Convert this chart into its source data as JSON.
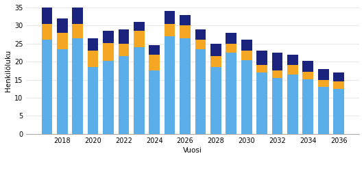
{
  "years": [
    2017,
    2018,
    2019,
    2020,
    2021,
    2022,
    2023,
    2024,
    2025,
    2026,
    2027,
    2028,
    2029,
    2030,
    2031,
    2032,
    2033,
    2034,
    2035,
    2036
  ],
  "vanhuuselakkeet": [
    26.0,
    23.5,
    26.5,
    18.5,
    20.2,
    21.5,
    24.0,
    17.5,
    27.0,
    26.5,
    23.5,
    18.5,
    22.5,
    20.5,
    17.0,
    15.5,
    16.5,
    15.2,
    13.0,
    12.5
  ],
  "tyokyvyttomyyselakkeet": [
    4.5,
    4.5,
    4.0,
    4.5,
    5.0,
    3.5,
    4.5,
    4.5,
    3.5,
    3.5,
    2.5,
    3.0,
    2.5,
    2.5,
    2.0,
    2.0,
    2.5,
    2.0,
    2.0,
    2.0
  ],
  "osatyokyvyttomyyselakkeet": [
    4.5,
    4.0,
    4.5,
    3.5,
    3.3,
    4.0,
    2.5,
    2.5,
    3.5,
    3.0,
    3.0,
    3.5,
    3.0,
    3.0,
    4.0,
    5.0,
    3.0,
    3.0,
    3.0,
    2.5
  ],
  "color_vanhuus": "#5baee8",
  "color_tyokyvyttomyys": "#f5a623",
  "color_osatyokyvyttomyys": "#1a237e",
  "ylabel": "Henkilöluku",
  "xlabel": "Vuosi",
  "ylim": [
    0,
    35
  ],
  "yticks": [
    0,
    5,
    10,
    15,
    20,
    25,
    30,
    35
  ],
  "bg_color": "#ffffff",
  "grid_color": "#e8e8e8"
}
